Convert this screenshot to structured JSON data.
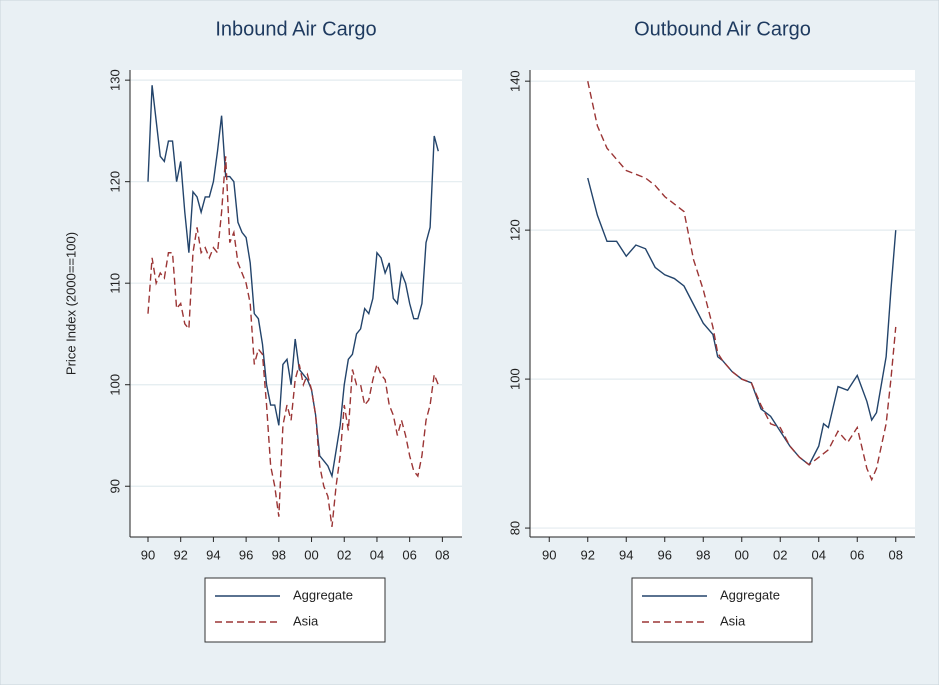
{
  "chart_data": [
    {
      "type": "line",
      "title": "Inbound Air Cargo",
      "y_label": "Price Index (2000==100)",
      "x": [
        1990,
        1990.25,
        1990.5,
        1990.75,
        1991,
        1991.25,
        1991.5,
        1991.75,
        1992,
        1992.25,
        1992.5,
        1992.75,
        1993,
        1993.25,
        1993.5,
        1993.75,
        1994,
        1994.25,
        1994.5,
        1994.75,
        1995,
        1995.25,
        1995.5,
        1995.75,
        1996,
        1996.25,
        1996.5,
        1996.75,
        1997,
        1997.25,
        1997.5,
        1997.75,
        1998,
        1998.25,
        1998.5,
        1998.75,
        1999,
        1999.25,
        1999.5,
        1999.75,
        2000,
        2000.25,
        2000.5,
        2000.75,
        2001,
        2001.25,
        2001.5,
        2001.75,
        2002,
        2002.25,
        2002.5,
        2002.75,
        2003,
        2003.25,
        2003.5,
        2003.75,
        2004,
        2004.25,
        2004.5,
        2004.75,
        2005,
        2005.25,
        2005.5,
        2005.75,
        2006,
        2006.25,
        2006.5,
        2006.75,
        2007,
        2007.25,
        2007.5,
        2007.75
      ],
      "series": [
        {
          "name": "Aggregate",
          "color": "#23446b",
          "dash": "solid",
          "values": [
            120,
            129.5,
            126,
            122.5,
            122,
            124,
            124,
            120,
            122,
            117,
            113,
            119,
            118.5,
            117,
            118.5,
            118.5,
            120,
            123,
            126.5,
            120.5,
            120.5,
            120,
            116,
            115,
            114.5,
            112,
            107,
            106.5,
            104,
            100,
            98,
            98,
            96,
            102,
            102.5,
            100,
            104.5,
            101.5,
            101,
            100.5,
            99.5,
            97,
            93,
            92.5,
            92,
            91,
            93.5,
            96,
            100,
            102.5,
            103,
            105,
            105.5,
            107.5,
            107,
            108.5,
            113,
            112.5,
            111,
            112,
            108.5,
            108,
            111,
            110,
            108,
            106.5,
            106.5,
            108,
            114,
            115.5,
            124.5,
            123
          ]
        },
        {
          "name": "Asia",
          "color": "#9b3535",
          "dash": "dashed",
          "values": [
            107,
            112.5,
            110,
            111,
            110.5,
            113,
            113,
            107.5,
            108,
            106,
            105.5,
            113,
            115.5,
            113,
            113.5,
            112.5,
            113.5,
            113,
            117,
            122.5,
            114,
            115,
            112,
            111,
            110,
            108,
            102,
            103.5,
            103,
            98,
            92,
            90,
            87,
            96,
            98,
            96.5,
            100.5,
            102,
            100,
            101,
            99.5,
            97,
            92,
            90,
            89,
            86,
            90,
            93,
            98,
            95.5,
            101.5,
            100,
            100,
            98,
            98.5,
            100.5,
            102,
            101,
            100.5,
            98,
            97,
            95,
            96.5,
            95,
            93,
            91.5,
            91,
            93,
            96.5,
            98,
            101,
            100
          ]
        }
      ],
      "xlim": [
        1988.9,
        2009.2
      ],
      "ylim": [
        85,
        131
      ],
      "xticks": [
        {
          "value": 1990,
          "label": "90"
        },
        {
          "value": 1992,
          "label": "92"
        },
        {
          "value": 1994,
          "label": "94"
        },
        {
          "value": 1996,
          "label": "96"
        },
        {
          "value": 1998,
          "label": "98"
        },
        {
          "value": 2000,
          "label": "00"
        },
        {
          "value": 2002,
          "label": "02"
        },
        {
          "value": 2004,
          "label": "04"
        },
        {
          "value": 2006,
          "label": "06"
        },
        {
          "value": 2008,
          "label": "08"
        }
      ],
      "yticks": [
        90,
        100,
        110,
        120,
        130
      ],
      "grid": true,
      "legend": "bottom"
    },
    {
      "type": "line",
      "title": "Outbound Air Cargo",
      "x": [
        1992,
        1992.5,
        1993,
        1993.5,
        1994,
        1994.5,
        1995,
        1995.5,
        1996,
        1996.5,
        1997,
        1997.5,
        1998,
        1998.5,
        1998.75,
        1999,
        1999.5,
        2000,
        2000.5,
        2001,
        2001.5,
        2002,
        2002.5,
        2003,
        2003.5,
        2004,
        2004.25,
        2004.5,
        2005,
        2005.5,
        2006,
        2006.5,
        2006.75,
        2007,
        2007.5,
        2007.75,
        2008
      ],
      "series": [
        {
          "name": "Aggregate",
          "color": "#23446b",
          "dash": "solid",
          "values": [
            127,
            122,
            118.5,
            118.5,
            116.5,
            118,
            117.5,
            115,
            114,
            113.5,
            112.5,
            110,
            107.5,
            106,
            103,
            102.5,
            101,
            100,
            99.5,
            96,
            95,
            93,
            91,
            89.5,
            88.5,
            91,
            94,
            93.5,
            99,
            98.5,
            100.5,
            97,
            94.5,
            95.5,
            103,
            112,
            120
          ]
        },
        {
          "name": "Asia",
          "color": "#9b3535",
          "dash": "dashed",
          "values": [
            140,
            134,
            131,
            129.5,
            128,
            127.5,
            127,
            126,
            124.5,
            123.5,
            122.5,
            116,
            112,
            107,
            103.5,
            102.5,
            101,
            100,
            99.5,
            96.5,
            94,
            93.5,
            91,
            89.5,
            88.5,
            89.5,
            90,
            90.5,
            93,
            91.5,
            93.5,
            88,
            86.5,
            88,
            94,
            100,
            107
          ]
        }
      ],
      "xlim": [
        1989,
        2009
      ],
      "ylim": [
        78.8,
        141.5
      ],
      "xticks": [
        {
          "value": 1990,
          "label": "90"
        },
        {
          "value": 1992,
          "label": "92"
        },
        {
          "value": 1994,
          "label": "94"
        },
        {
          "value": 1996,
          "label": "96"
        },
        {
          "value": 1998,
          "label": "98"
        },
        {
          "value": 2000,
          "label": "00"
        },
        {
          "value": 2002,
          "label": "02"
        },
        {
          "value": 2004,
          "label": "04"
        },
        {
          "value": 2006,
          "label": "06"
        },
        {
          "value": 2008,
          "label": "08"
        }
      ],
      "yticks": [
        80,
        100,
        120,
        140
      ],
      "grid": true,
      "legend": "bottom"
    }
  ]
}
